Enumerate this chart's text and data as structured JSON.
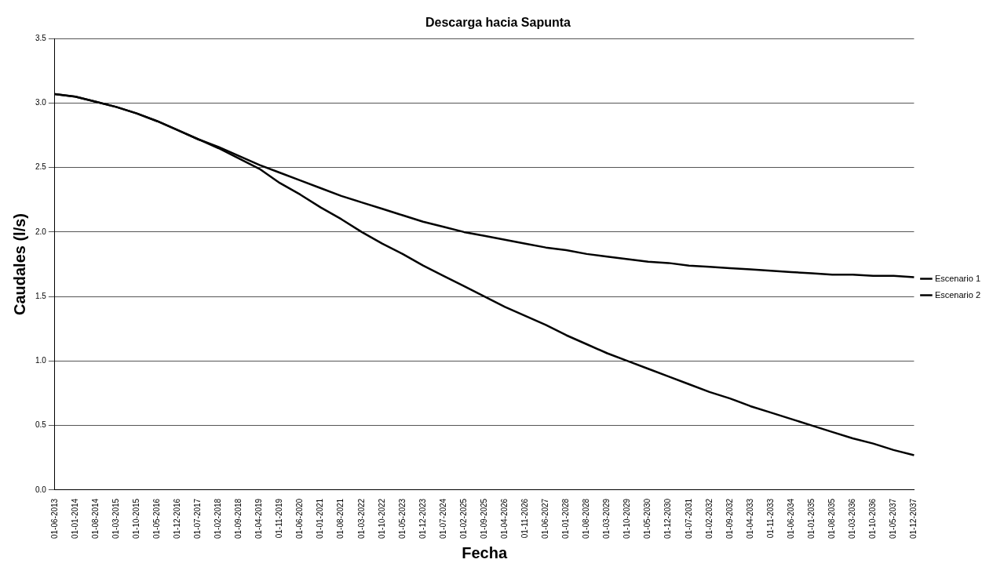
{
  "chart_data": {
    "type": "line",
    "title": "Descarga hacia Sapunta",
    "xlabel": "Fecha",
    "ylabel": "Caudales (l/s)",
    "categories": [
      "01-06-2013",
      "01-01-2014",
      "01-08-2014",
      "01-03-2015",
      "01-10-2015",
      "01-05-2016",
      "01-12-2016",
      "01-07-2017",
      "01-02-2018",
      "01-09-2018",
      "01-04-2019",
      "01-11-2019",
      "01-06-2020",
      "01-01-2021",
      "01-08-2021",
      "01-03-2022",
      "01-10-2022",
      "01-05-2023",
      "01-12-2023",
      "01-07-2024",
      "01-02-2025",
      "01-09-2025",
      "01-04-2026",
      "01-11-2026",
      "01-06-2027",
      "01-01-2028",
      "01-08-2028",
      "01-03-2029",
      "01-10-2029",
      "01-05-2030",
      "01-12-2030",
      "01-07-2031",
      "01-02-2032",
      "01-09-2032",
      "01-04-2033",
      "01-11-2033",
      "01-06-2034",
      "01-01-2035",
      "01-08-2035",
      "01-03-2036",
      "01-10-2036",
      "01-05-2037",
      "01-12-2037"
    ],
    "series": [
      {
        "name": "Escenario 1",
        "color": "#000000",
        "values": [
          3.07,
          3.05,
          3.01,
          2.97,
          2.92,
          2.86,
          2.79,
          2.72,
          2.66,
          2.59,
          2.52,
          2.46,
          2.4,
          2.34,
          2.28,
          2.23,
          2.18,
          2.13,
          2.08,
          2.04,
          2.0,
          1.97,
          1.94,
          1.91,
          1.88,
          1.86,
          1.83,
          1.81,
          1.79,
          1.77,
          1.76,
          1.74,
          1.73,
          1.72,
          1.71,
          1.7,
          1.69,
          1.68,
          1.67,
          1.67,
          1.66,
          1.66,
          1.65
        ]
      },
      {
        "name": "Escenario 2",
        "color": "#000000",
        "values": [
          3.07,
          3.05,
          3.01,
          2.97,
          2.92,
          2.86,
          2.79,
          2.72,
          2.65,
          2.57,
          2.49,
          2.38,
          2.29,
          2.19,
          2.1,
          2.0,
          1.91,
          1.83,
          1.74,
          1.66,
          1.58,
          1.5,
          1.42,
          1.35,
          1.28,
          1.2,
          1.13,
          1.06,
          1.0,
          0.94,
          0.88,
          0.82,
          0.76,
          0.71,
          0.65,
          0.6,
          0.55,
          0.5,
          0.45,
          0.4,
          0.36,
          0.31,
          0.27
        ]
      }
    ],
    "ylim": [
      0,
      3.5
    ],
    "yticks": [
      {
        "value": 0,
        "label": "0.0"
      },
      {
        "value": 0.5,
        "label": "0.5"
      },
      {
        "value": 1,
        "label": "1.0"
      },
      {
        "value": 1.5,
        "label": "1.5"
      },
      {
        "value": 2,
        "label": "2.0"
      },
      {
        "value": 2.5,
        "label": "2.5"
      },
      {
        "value": 3,
        "label": "3.0"
      },
      {
        "value": 3.5,
        "label": "3.5"
      }
    ],
    "grid": "y",
    "legend": "right",
    "marker": "none",
    "line_style": "solid"
  }
}
